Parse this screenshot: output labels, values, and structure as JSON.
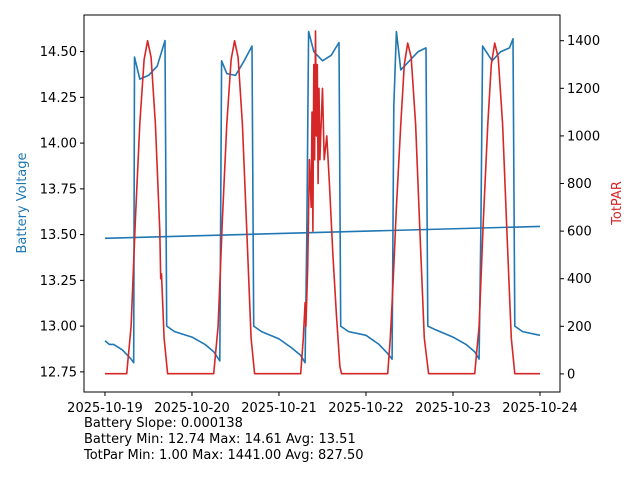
{
  "chart_data": {
    "type": "line",
    "xlabel": "",
    "ylabel_left": "Battery Voltage",
    "ylabel_right": "TotPAR",
    "x_tick_labels": [
      "2025-10-19",
      "2025-10-20",
      "2025-10-21",
      "2025-10-22",
      "2025-10-23",
      "2025-10-24"
    ],
    "x_unit": "days since 2025-10-19",
    "xlim": [
      -0.241,
      5.23
    ],
    "ylim_left": [
      12.64,
      14.7
    ],
    "ylim_right": [
      -76,
      1508
    ],
    "y_ticks_left": [
      12.75,
      13.0,
      13.25,
      13.5,
      13.75,
      14.0,
      14.25,
      14.5
    ],
    "y_ticks_right": [
      0,
      200,
      400,
      600,
      800,
      1000,
      1200,
      1400
    ],
    "colors": {
      "battery": "#1f77b4",
      "totpar": "#d62728",
      "trend": "#1f77b4"
    },
    "series": [
      {
        "name": "Battery Voltage",
        "axis": "left",
        "points": [
          [
            0,
            12.92
          ],
          [
            0.05,
            12.9
          ],
          [
            0.1,
            12.9
          ],
          [
            0.2,
            12.87
          ],
          [
            0.3,
            12.82
          ],
          [
            0.33,
            12.8
          ],
          [
            0.34,
            14.47
          ],
          [
            0.4,
            14.35
          ],
          [
            0.5,
            14.37
          ],
          [
            0.6,
            14.42
          ],
          [
            0.69,
            14.56
          ],
          [
            0.71,
            13.0
          ],
          [
            0.8,
            12.97
          ],
          [
            1.0,
            12.94
          ],
          [
            1.15,
            12.9
          ],
          [
            1.25,
            12.86
          ],
          [
            1.32,
            12.81
          ],
          [
            1.34,
            14.45
          ],
          [
            1.4,
            14.38
          ],
          [
            1.5,
            14.37
          ],
          [
            1.6,
            14.45
          ],
          [
            1.69,
            14.53
          ],
          [
            1.71,
            13.0
          ],
          [
            1.8,
            12.97
          ],
          [
            2.0,
            12.93
          ],
          [
            2.15,
            12.88
          ],
          [
            2.25,
            12.84
          ],
          [
            2.3,
            12.8
          ],
          [
            2.32,
            13.5
          ],
          [
            2.34,
            14.61
          ],
          [
            2.4,
            14.5
          ],
          [
            2.5,
            14.45
          ],
          [
            2.6,
            14.48
          ],
          [
            2.69,
            14.55
          ],
          [
            2.71,
            13.0
          ],
          [
            2.8,
            12.97
          ],
          [
            3.0,
            12.95
          ],
          [
            3.15,
            12.9
          ],
          [
            3.25,
            12.85
          ],
          [
            3.3,
            12.82
          ],
          [
            3.32,
            14.2
          ],
          [
            3.35,
            14.61
          ],
          [
            3.4,
            14.4
          ],
          [
            3.5,
            14.45
          ],
          [
            3.6,
            14.5
          ],
          [
            3.69,
            14.52
          ],
          [
            3.71,
            13.0
          ],
          [
            3.8,
            12.98
          ],
          [
            4.0,
            12.94
          ],
          [
            4.15,
            12.9
          ],
          [
            4.25,
            12.86
          ],
          [
            4.3,
            12.82
          ],
          [
            4.32,
            13.5
          ],
          [
            4.34,
            14.53
          ],
          [
            4.45,
            14.45
          ],
          [
            4.55,
            14.5
          ],
          [
            4.65,
            14.52
          ],
          [
            4.69,
            14.57
          ],
          [
            4.71,
            13.0
          ],
          [
            4.8,
            12.97
          ],
          [
            5.0,
            12.95
          ]
        ]
      },
      {
        "name": "Battery Trend",
        "axis": "left",
        "points": [
          [
            0,
            13.48
          ],
          [
            5,
            13.545
          ]
        ]
      },
      {
        "name": "TotPAR",
        "axis": "right",
        "points": [
          [
            0,
            1
          ],
          [
            0.25,
            1
          ],
          [
            0.3,
            200
          ],
          [
            0.35,
            650
          ],
          [
            0.4,
            1050
          ],
          [
            0.45,
            1320
          ],
          [
            0.49,
            1400
          ],
          [
            0.53,
            1330
          ],
          [
            0.58,
            1050
          ],
          [
            0.63,
            600
          ],
          [
            0.64,
            400
          ],
          [
            0.65,
            420
          ],
          [
            0.68,
            150
          ],
          [
            0.72,
            1
          ],
          [
            1.25,
            1
          ],
          [
            1.3,
            200
          ],
          [
            1.35,
            650
          ],
          [
            1.4,
            1050
          ],
          [
            1.45,
            1320
          ],
          [
            1.49,
            1400
          ],
          [
            1.53,
            1330
          ],
          [
            1.58,
            1050
          ],
          [
            1.63,
            600
          ],
          [
            1.68,
            150
          ],
          [
            1.72,
            1
          ],
          [
            2.25,
            1
          ],
          [
            2.28,
            150
          ],
          [
            2.3,
            300
          ],
          [
            2.31,
            200
          ],
          [
            2.33,
            450
          ],
          [
            2.35,
            900
          ],
          [
            2.37,
            700
          ],
          [
            2.38,
            1100
          ],
          [
            2.39,
            600
          ],
          [
            2.4,
            1300
          ],
          [
            2.41,
            900
          ],
          [
            2.42,
            1441
          ],
          [
            2.43,
            1000
          ],
          [
            2.44,
            1300
          ],
          [
            2.45,
            800
          ],
          [
            2.46,
            1200
          ],
          [
            2.47,
            900
          ],
          [
            2.48,
            1000
          ],
          [
            2.5,
            1200
          ],
          [
            2.52,
            900
          ],
          [
            2.55,
            1000
          ],
          [
            2.58,
            800
          ],
          [
            2.62,
            500
          ],
          [
            2.66,
            250
          ],
          [
            2.7,
            30
          ],
          [
            2.72,
            1
          ],
          [
            3.25,
            1
          ],
          [
            3.28,
            150
          ],
          [
            3.3,
            300
          ],
          [
            3.32,
            450
          ],
          [
            3.35,
            700
          ],
          [
            3.4,
            1050
          ],
          [
            3.44,
            1300
          ],
          [
            3.48,
            1390
          ],
          [
            3.52,
            1330
          ],
          [
            3.57,
            1050
          ],
          [
            3.62,
            600
          ],
          [
            3.67,
            150
          ],
          [
            3.72,
            1
          ],
          [
            4.25,
            1
          ],
          [
            4.3,
            200
          ],
          [
            4.35,
            650
          ],
          [
            4.4,
            1050
          ],
          [
            4.44,
            1300
          ],
          [
            4.48,
            1390
          ],
          [
            4.52,
            1330
          ],
          [
            4.57,
            1050
          ],
          [
            4.62,
            600
          ],
          [
            4.67,
            150
          ],
          [
            4.71,
            1
          ],
          [
            5.0,
            1
          ]
        ]
      }
    ]
  },
  "stats": {
    "line1": "Battery Slope: 0.000138",
    "line2": "Battery Min: 12.74 Max: 14.61 Avg: 13.51",
    "line3": "TotPar Min: 1.00 Max: 1441.00 Avg: 827.50"
  }
}
